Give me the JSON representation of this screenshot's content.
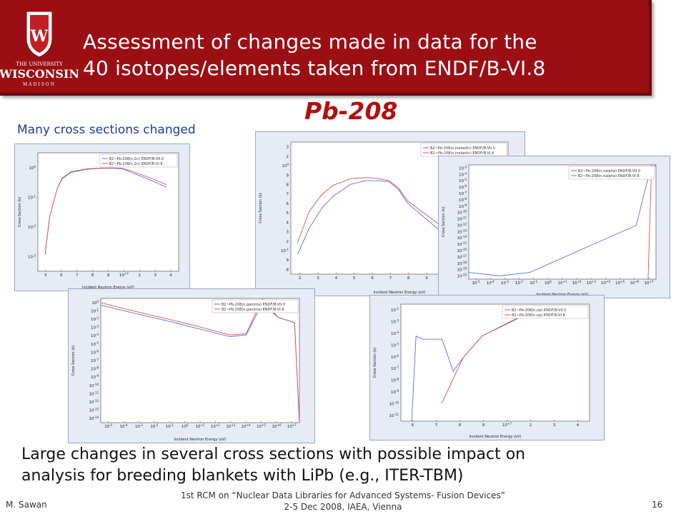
{
  "header": {
    "logo_text": [
      "THE UNIVERSITY",
      "WISCONSIN",
      "MADISON"
    ],
    "title_line1": "Assessment of changes made in data for the",
    "title_line2": "40 isotopes/elements taken from ENDF/B-VI.8",
    "colors": {
      "banner": "#9b0f14",
      "title": "#ffffff"
    }
  },
  "subject": "Pb-208",
  "caption": "Many cross sections changed",
  "conclusion": {
    "line1": "Large changes in several cross sections with possible impact on",
    "line2": "analysis for breeding blankets with LiPb (e.g., ITER-TBM)"
  },
  "footer": {
    "author": "M. Sawan",
    "conference_line1": "1st RCM on “Nuclear Data Libraries for Advanced Systems- Fusion Devices”",
    "conference_line2": "2-5 Dec 2008, IAEA, Vienna",
    "page": "16"
  },
  "chart_data": [
    {
      "type": "line",
      "xlabel": "Incident Neutron Energy (eV)",
      "ylabel": "Cross Section (b)",
      "xticks": [
        "5",
        "6",
        "7",
        "8",
        "9",
        "10+7",
        "2",
        "3",
        "4"
      ],
      "yticks": [
        "10^0",
        "10^-1",
        "10^-2",
        "10^-3"
      ],
      "series": [
        {
          "name": "B2~Pb-208(n,2n) ENDF/B-VII.0",
          "color": "#5a6fe0",
          "x": [
            7400000.0,
            7800000.0,
            8500000.0,
            9000000.0,
            10000000.0,
            12000000.0,
            14000000.0,
            16000000.0,
            18000000.0,
            20000000.0,
            25000000.0,
            30000000.0
          ],
          "y": [
            0.0005,
            0.02,
            0.3,
            0.8,
            1.5,
            2.0,
            2.2,
            2.25,
            2.1,
            1.5,
            0.7,
            0.35
          ]
        },
        {
          "name": "B2~Pb-208(n,2n) ENDF/B-VI.8",
          "color": "#e05050",
          "x": [
            7400000.0,
            7800000.0,
            8500000.0,
            9000000.0,
            10000000.0,
            12000000.0,
            14000000.0,
            16000000.0,
            18000000.0,
            20000000.0,
            25000000.0,
            30000000.0
          ],
          "y": [
            0.0005,
            0.02,
            0.3,
            0.85,
            1.6,
            2.1,
            2.25,
            2.3,
            2.2,
            1.7,
            0.85,
            0.45
          ]
        }
      ]
    },
    {
      "type": "line",
      "xlabel": "Incident Neutron Energy (eV)",
      "ylabel": "Cross Section (b)",
      "xticks": [
        "2",
        "3",
        "4",
        "5",
        "6",
        "7",
        "8",
        "9",
        "10+7",
        "2",
        "3",
        "4"
      ],
      "yticks": [
        "3",
        "2",
        "10^0",
        "9",
        "8",
        "7",
        "6",
        "5",
        "4",
        "3",
        "2",
        "10^-1",
        "9",
        "8"
      ],
      "series": [
        {
          "name": "B2~Pb-208(n,inelastic) ENDF/B-VII.0",
          "color": "#5a6fe0",
          "x": [
            2600000.0,
            3000000.0,
            3500000.0,
            4000000.0,
            5000000.0,
            6000000.0,
            7000000.0,
            8000000.0,
            9000000.0,
            10000000.0,
            15000000.0,
            20000000.0,
            30000000.0
          ],
          "y": [
            0.2,
            0.5,
            1.0,
            1.5,
            2.3,
            2.6,
            2.6,
            2.5,
            1.9,
            1.2,
            0.45,
            0.3,
            0.2
          ]
        },
        {
          "name": "B2~Pb-208(n,inelastic) ENDF/B-VI.8",
          "color": "#e05050",
          "x": [
            2600000.0,
            3000000.0,
            3500000.0,
            4000000.0,
            5000000.0,
            6000000.0,
            7000000.0,
            8000000.0,
            9000000.0,
            10000000.0,
            15000000.0,
            20000000.0,
            30000000.0
          ],
          "y": [
            0.3,
            0.9,
            1.6,
            2.2,
            2.8,
            2.9,
            2.8,
            2.6,
            2.0,
            1.3,
            0.55,
            0.38,
            0.26
          ]
        }
      ]
    },
    {
      "type": "line",
      "xlabel": "Incident Neutron Energy (eV)",
      "ylabel": "Cross Section (b)",
      "xticks": [
        "10^-5",
        "10^-4",
        "10^-3",
        "10^-2",
        "10^-1",
        "10^0",
        "10^+1",
        "10^+2",
        "10^+3",
        "10^+4",
        "10^+5",
        "10^+6",
        "10^+7"
      ],
      "yticks": [
        "10^-3",
        "10^-4",
        "10^-5",
        "10^-6",
        "10^-7",
        "10^-8",
        "10^-9",
        "10^-10",
        "10^-11",
        "10^-12",
        "10^-13",
        "10^-14",
        "10^-15",
        "10^-16",
        "10^-17",
        "10^-18",
        "10^-19",
        "10^-20"
      ],
      "series": [
        {
          "name": "B2~Pb-208(n,nalpha) ENDF/B-VII.0",
          "color": "#5a6fe0",
          "x": [
            1e-05,
            0.001,
            0.1,
            10.0,
            1000.0,
            100000.0,
            1000000.0,
            10000000.0,
            20000000.0
          ],
          "y": [
            1e-19,
            3e-20,
            1e-19,
            1e-17,
            1e-15,
            1e-13,
            1e-12,
            0.001,
            0.001
          ]
        },
        {
          "name": "B2~Pb-208(n,nalpha) ENDF/B-VI.8",
          "color": "#e05050",
          "x": [
            6000000.0,
            10000000.0,
            20000000.0
          ],
          "y": [
            1e-20,
            0.0001,
            0.001
          ]
        }
      ]
    },
    {
      "type": "line",
      "xlabel": "Incident Neutron Energy (eV)",
      "ylabel": "Cross Section (b)",
      "xticks": [
        "10^-5",
        "10^-4",
        "10^-3",
        "10^-2",
        "10^-1",
        "10^0",
        "10^+1",
        "10^+2",
        "10^+3",
        "10^+4",
        "10^+5",
        "10^+6",
        "10^+7"
      ],
      "yticks": [
        "10^0",
        "10^-1",
        "10^-2",
        "10^-3",
        "10^-4",
        "10^-5",
        "10^-6",
        "10^-7",
        "10^-8",
        "10^-9",
        "10^-10",
        "10^-11",
        "10^-12",
        "10^-13",
        "10^-14"
      ],
      "series": [
        {
          "name": "B2~Pb-208(n,gamma) ENDF/B-VII.0",
          "color": "#5a6fe0",
          "x": [
            1e-05,
            0.001,
            0.1,
            10.0,
            1000.0,
            10000.0,
            100000.0,
            1000000.0,
            10000000.0,
            20000000.0
          ],
          "y": [
            0.02,
            0.003,
            0.0005,
            7e-05,
            1e-05,
            1.5e-05,
            0.03,
            0.001,
            0.0003,
            1e-14
          ]
        },
        {
          "name": "B2~Pb-208(n,gamma) ENDF/B-VI.8",
          "color": "#e05050",
          "x": [
            1e-05,
            0.001,
            0.1,
            10.0,
            1000.0,
            10000.0,
            100000.0,
            1000000.0,
            10000000.0,
            20000000.0
          ],
          "y": [
            0.035,
            0.005,
            0.0008,
            0.00012,
            1.5e-05,
            2e-05,
            0.08,
            0.001,
            0.0003,
            1e-14
          ]
        }
      ]
    },
    {
      "type": "line",
      "xlabel": "Incident Neutron Energy (eV)",
      "ylabel": "Cross Section (b)",
      "xticks": [
        "6",
        "7",
        "8",
        "9",
        "10+7",
        "2",
        "3",
        "4"
      ],
      "yticks": [
        "10^-2",
        "10^-3",
        "10^-4",
        "10^-5",
        "10^-6",
        "10^-7",
        "10^-8",
        "10^-9",
        "10^-10",
        "10^-11"
      ],
      "series": [
        {
          "name": "B2~Pb-208(n,np) ENDF/B-VII.0",
          "color": "#5a6fe0",
          "x": [
            8700000.0,
            9000000.0,
            9500000.0,
            10000000.0,
            11000000.0,
            12000000.0,
            13000000.0,
            15000000.0,
            20000000.0,
            30000000.0
          ],
          "y": [
            1e-12,
            0.0001,
            5e-05,
            5e-05,
            5e-05,
            5e-08,
            1e-06,
            0.0001,
            0.005,
            0.02
          ]
        },
        {
          "name": "B2~Pb-208(n,np) ENDF/B-VI.8",
          "color": "#e05050",
          "x": [
            11000000.0,
            12000000.0,
            13000000.0,
            15000000.0,
            20000000.0,
            30000000.0
          ],
          "y": [
            5e-11,
            1e-08,
            1e-06,
            0.0001,
            0.006,
            0.025
          ]
        }
      ]
    }
  ]
}
